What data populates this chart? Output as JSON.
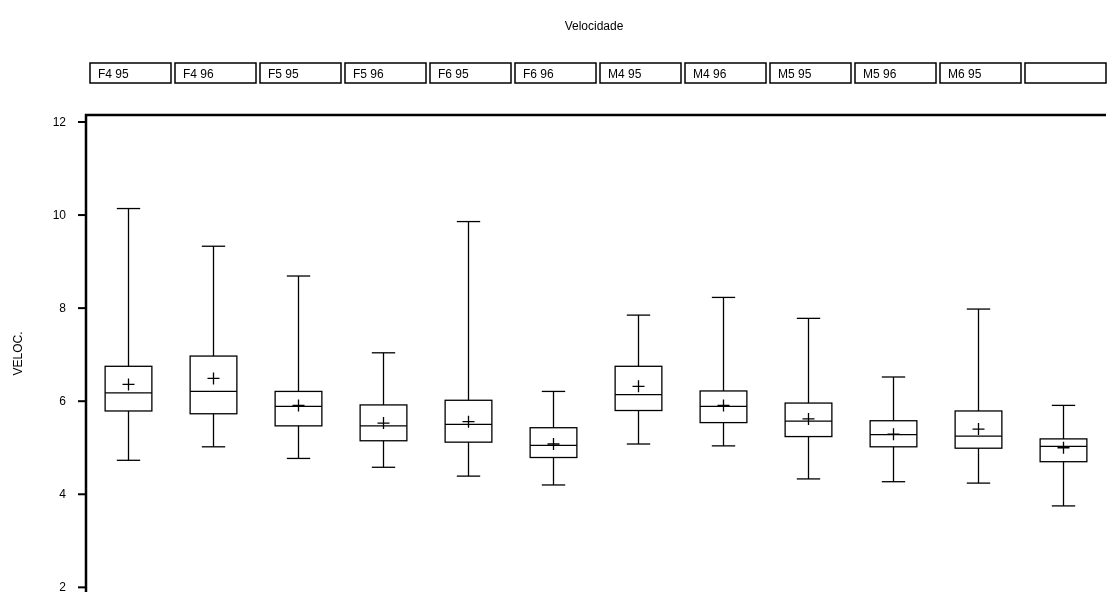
{
  "chart_data": {
    "type": "box",
    "title": "Velocidade",
    "ylabel": "VELOC.",
    "categories": [
      "F4 95",
      "F4 96",
      "F5 95",
      "F5 96",
      "F6 95",
      "F6 96",
      "M4 95",
      "M4 96",
      "M5 95",
      "M5 96",
      "M6 95",
      null
    ],
    "ylim": [
      1.9,
      12.15
    ],
    "yticks": [
      2,
      4,
      6,
      8,
      10,
      12
    ],
    "grid": false,
    "color": "#000000",
    "boxes": [
      {
        "low": 4.73,
        "q1": 5.79,
        "median": 6.18,
        "q3": 6.75,
        "high": 10.14,
        "mean": 6.36
      },
      {
        "low": 5.02,
        "q1": 5.73,
        "median": 6.21,
        "q3": 6.97,
        "high": 9.33,
        "mean": 6.49
      },
      {
        "low": 4.77,
        "q1": 5.47,
        "median": 5.89,
        "q3": 6.21,
        "high": 8.69,
        "mean": 5.91
      },
      {
        "low": 4.58,
        "q1": 5.15,
        "median": 5.47,
        "q3": 5.92,
        "high": 7.04,
        "mean": 5.53
      },
      {
        "low": 4.39,
        "q1": 5.12,
        "median": 5.5,
        "q3": 6.02,
        "high": 9.86,
        "mean": 5.56
      },
      {
        "low": 4.2,
        "q1": 4.79,
        "median": 5.05,
        "q3": 5.43,
        "high": 6.21,
        "mean": 5.08
      },
      {
        "low": 5.08,
        "q1": 5.8,
        "median": 6.14,
        "q3": 6.75,
        "high": 7.85,
        "mean": 6.32
      },
      {
        "low": 5.04,
        "q1": 5.54,
        "median": 5.89,
        "q3": 6.22,
        "high": 8.23,
        "mean": 5.91
      },
      {
        "low": 4.33,
        "q1": 5.24,
        "median": 5.57,
        "q3": 5.96,
        "high": 7.78,
        "mean": 5.62
      },
      {
        "low": 4.27,
        "q1": 5.02,
        "median": 5.28,
        "q3": 5.58,
        "high": 6.52,
        "mean": 5.29
      },
      {
        "low": 4.24,
        "q1": 4.99,
        "median": 5.25,
        "q3": 5.79,
        "high": 7.98,
        "mean": 5.4
      },
      {
        "low": 3.75,
        "q1": 4.7,
        "median": 5.03,
        "q3": 5.19,
        "high": 5.91,
        "mean": 5.0
      }
    ]
  }
}
